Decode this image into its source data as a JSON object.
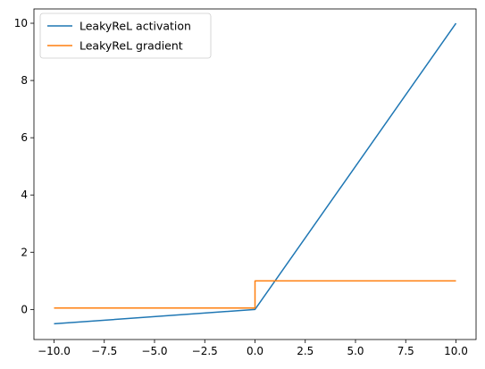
{
  "chart_data": {
    "type": "line",
    "title": "",
    "xlabel": "",
    "ylabel": "",
    "xlim": [
      -11,
      11
    ],
    "ylim": [
      -1.05,
      10.5
    ],
    "x_ticks": [
      -10.0,
      -7.5,
      -5.0,
      -2.5,
      0.0,
      2.5,
      5.0,
      7.5,
      10.0
    ],
    "x_tick_labels": [
      "−10.0",
      "−7.5",
      "−5.0",
      "−2.5",
      "0.0",
      "2.5",
      "5.0",
      "7.5",
      "10.0"
    ],
    "y_ticks": [
      0,
      2,
      4,
      6,
      8,
      10
    ],
    "y_tick_labels": [
      "0",
      "2",
      "4",
      "6",
      "8",
      "10"
    ],
    "grid": false,
    "legend_position": "top-left",
    "series": [
      {
        "name": "LeakyReL activation",
        "color": "#1f77b4",
        "x": [
          -10,
          0,
          10
        ],
        "y": [
          -0.5,
          0,
          10
        ]
      },
      {
        "name": "LeakyReL gradient",
        "color": "#ff7f0e",
        "x": [
          -10,
          0,
          0,
          10
        ],
        "y": [
          0.05,
          0.05,
          1,
          1
        ]
      }
    ]
  }
}
